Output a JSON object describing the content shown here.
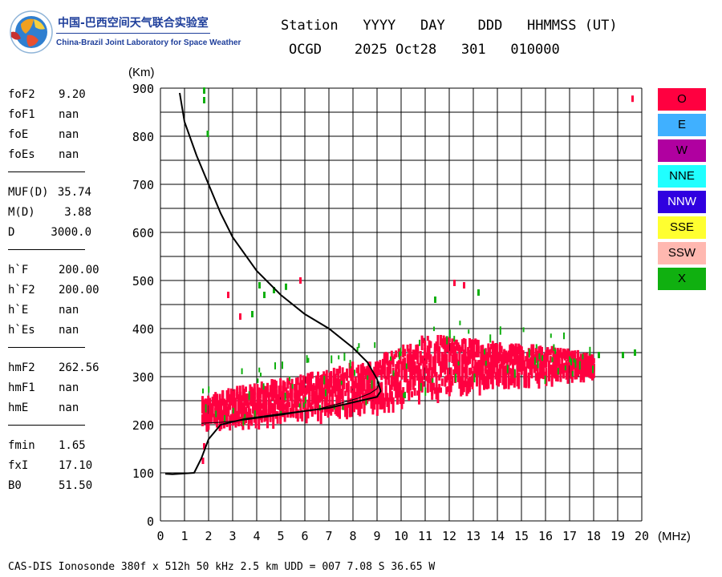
{
  "logo": {
    "cn": "中国-巴西空间天气联合实验室",
    "en": "China-Brazil Joint Laboratory for Space Weather"
  },
  "header": {
    "labels": "Station   YYYY   DAY    DDD   HHMMSS (UT)",
    "values": "OCGD    2025 Oct28   301   010000"
  },
  "params": {
    "group1": [
      {
        "name": "foF2",
        "value": "9.20"
      },
      {
        "name": "foF1",
        "value": "nan"
      },
      {
        "name": "foE",
        "value": "nan"
      },
      {
        "name": "foEs",
        "value": "nan"
      }
    ],
    "group2": [
      {
        "name": "MUF(D)",
        "value": "35.74"
      },
      {
        "name": "M(D)",
        "value": "3.88"
      },
      {
        "name": "D",
        "value": "3000.0"
      }
    ],
    "group3": [
      {
        "name": "h`F",
        "value": "200.00"
      },
      {
        "name": "h`F2",
        "value": "200.00"
      },
      {
        "name": "h`E",
        "value": "nan"
      },
      {
        "name": "h`Es",
        "value": "nan"
      }
    ],
    "group4": [
      {
        "name": "hmF2",
        "value": "262.56"
      },
      {
        "name": "hmF1",
        "value": "nan"
      },
      {
        "name": "hmE",
        "value": "nan"
      }
    ],
    "group5": [
      {
        "name": "fmin",
        "value": "1.65"
      },
      {
        "name": "fxI",
        "value": "17.10"
      },
      {
        "name": "B0",
        "value": "51.50"
      }
    ]
  },
  "legend": [
    {
      "label": "O",
      "color": "#ff0040"
    },
    {
      "label": "E",
      "color": "#40b0ff"
    },
    {
      "label": "W",
      "color": "#b000a0"
    },
    {
      "label": "NNE",
      "color": "#20ffff"
    },
    {
      "label": "NNW",
      "color": "#3000e0"
    },
    {
      "label": "SSE",
      "color": "#ffff30"
    },
    {
      "label": "SSW",
      "color": "#ffb8b0"
    },
    {
      "label": "X",
      "color": "#10b010"
    }
  ],
  "footer": "CAS-DIS Ionosonde 380f x 512h 50 kHz 2.5 km UDD = 007 7.08 S 36.65 W",
  "chart_data": {
    "type": "scatter",
    "xlabel": "(MHz)",
    "ylabel": "(Km)",
    "xlim": [
      0,
      20
    ],
    "ylim": [
      0,
      900
    ],
    "xticks": [
      "0",
      "1",
      "2",
      "3",
      "4",
      "5",
      "6",
      "7",
      "8",
      "9",
      "10",
      "11",
      "12",
      "13",
      "14",
      "15",
      "16",
      "17",
      "18",
      "19",
      "20"
    ],
    "yticks": [
      "0",
      "100",
      "200",
      "300",
      "400",
      "500",
      "600",
      "700",
      "800",
      "900"
    ],
    "grid": true,
    "legend_position": "right",
    "o_trace_band": [
      {
        "x": 1.7,
        "ylow": 205,
        "yhigh": 260
      },
      {
        "x": 3,
        "ylow": 215,
        "yhigh": 280
      },
      {
        "x": 5,
        "ylow": 225,
        "yhigh": 300
      },
      {
        "x": 7,
        "ylow": 235,
        "yhigh": 320
      },
      {
        "x": 9,
        "ylow": 250,
        "yhigh": 345
      },
      {
        "x": 11,
        "ylow": 270,
        "yhigh": 390
      },
      {
        "x": 13,
        "ylow": 290,
        "yhigh": 380
      },
      {
        "x": 15,
        "ylow": 300,
        "yhigh": 370
      },
      {
        "x": 17,
        "ylow": 310,
        "yhigh": 360
      },
      {
        "x": 18,
        "ylow": 320,
        "yhigh": 345
      }
    ],
    "profile_curve": [
      [
        0.8,
        890
      ],
      [
        1.0,
        830
      ],
      [
        1.5,
        760
      ],
      [
        2.0,
        700
      ],
      [
        2.5,
        640
      ],
      [
        3.0,
        590
      ],
      [
        4.0,
        520
      ],
      [
        5.0,
        470
      ],
      [
        6.0,
        430
      ],
      [
        7.0,
        400
      ],
      [
        8.0,
        360
      ],
      [
        8.6,
        330
      ],
      [
        9.0,
        295
      ],
      [
        9.15,
        270
      ],
      [
        9.0,
        258
      ],
      [
        7.0,
        235
      ],
      [
        5.0,
        222
      ],
      [
        3.5,
        212
      ],
      [
        2.5,
        200
      ],
      [
        2.0,
        170
      ],
      [
        1.7,
        130
      ],
      [
        1.5,
        110
      ],
      [
        1.4,
        100
      ],
      [
        0.5,
        97
      ],
      [
        0.2,
        98
      ]
    ],
    "inner_trace": [
      [
        1.7,
        203
      ],
      [
        2.5,
        205
      ],
      [
        3.5,
        210
      ],
      [
        5.0,
        220
      ],
      [
        6.5,
        232
      ],
      [
        7.5,
        245
      ],
      [
        8.2,
        255
      ],
      [
        8.7,
        265
      ],
      [
        9.0,
        275
      ],
      [
        9.1,
        290
      ]
    ],
    "isolated_points": [
      {
        "x": 1.8,
        "y": 895,
        "mode": "X"
      },
      {
        "x": 1.8,
        "y": 875,
        "mode": "X"
      },
      {
        "x": 1.95,
        "y": 805,
        "mode": "X"
      },
      {
        "x": 19.6,
        "y": 878,
        "mode": "O"
      },
      {
        "x": 2.8,
        "y": 470,
        "mode": "O"
      },
      {
        "x": 3.3,
        "y": 425,
        "mode": "O"
      },
      {
        "x": 3.8,
        "y": 430,
        "mode": "X"
      },
      {
        "x": 4.1,
        "y": 490,
        "mode": "X"
      },
      {
        "x": 4.7,
        "y": 480,
        "mode": "X"
      },
      {
        "x": 5.2,
        "y": 487,
        "mode": "X"
      },
      {
        "x": 5.8,
        "y": 500,
        "mode": "O"
      },
      {
        "x": 4.3,
        "y": 470,
        "mode": "X"
      },
      {
        "x": 1.8,
        "y": 155,
        "mode": "O"
      },
      {
        "x": 1.75,
        "y": 125,
        "mode": "O"
      },
      {
        "x": 12.2,
        "y": 495,
        "mode": "O"
      },
      {
        "x": 12.6,
        "y": 490,
        "mode": "O"
      },
      {
        "x": 11.4,
        "y": 460,
        "mode": "X"
      },
      {
        "x": 13.2,
        "y": 475,
        "mode": "X"
      },
      {
        "x": 19.7,
        "y": 350,
        "mode": "X"
      },
      {
        "x": 19.2,
        "y": 345,
        "mode": "X"
      },
      {
        "x": 18.2,
        "y": 345,
        "mode": "X"
      }
    ]
  }
}
